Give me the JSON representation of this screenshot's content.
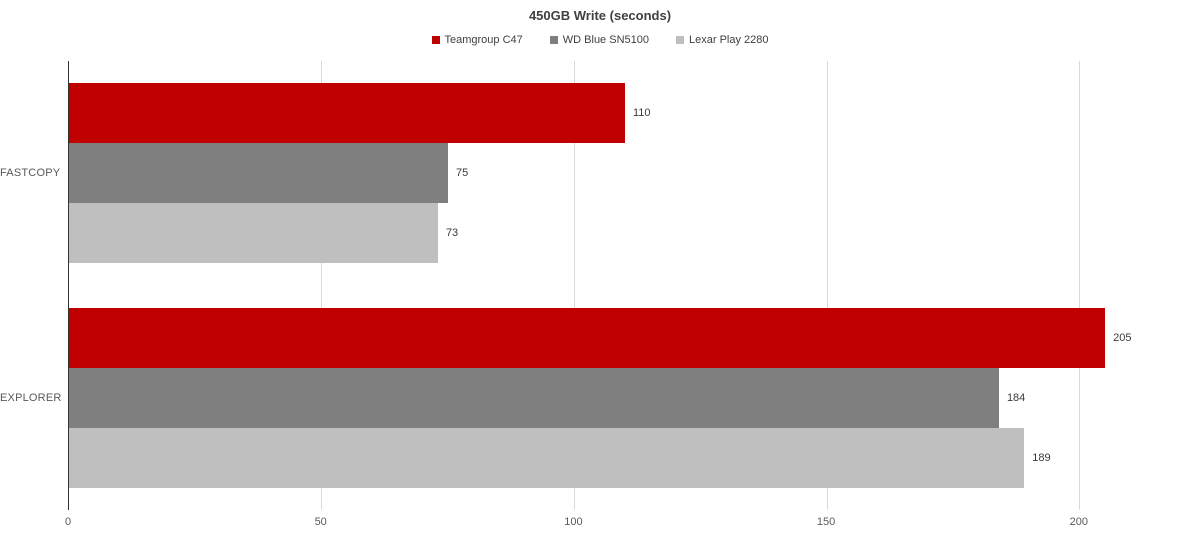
{
  "chart_data": {
    "type": "bar",
    "orientation": "horizontal",
    "title": "450GB Write (seconds)",
    "categories": [
      "FASTCOPY",
      "EXPLORER"
    ],
    "series": [
      {
        "name": "Teamgroup C47",
        "color": "#c00000",
        "values": [
          110,
          205
        ]
      },
      {
        "name": "WD Blue SN5100",
        "color": "#7f7f7f",
        "values": [
          75,
          184
        ]
      },
      {
        "name": "Lexar Play 2280",
        "color": "#bfbfbf",
        "values": [
          73,
          189
        ]
      }
    ],
    "xlabel": "",
    "ylabel": "",
    "xlim": [
      0,
      222
    ],
    "xticks": [
      0,
      50,
      100,
      150,
      200
    ],
    "gridlines": "vertical",
    "legend_position": "top",
    "data_labels": true,
    "colors": {
      "grid": "#d9d9d9",
      "axis": "#333333",
      "title_text": "#404040",
      "label_text": "#595959",
      "value_text": "#3a3a3a",
      "background": "#ffffff"
    }
  }
}
